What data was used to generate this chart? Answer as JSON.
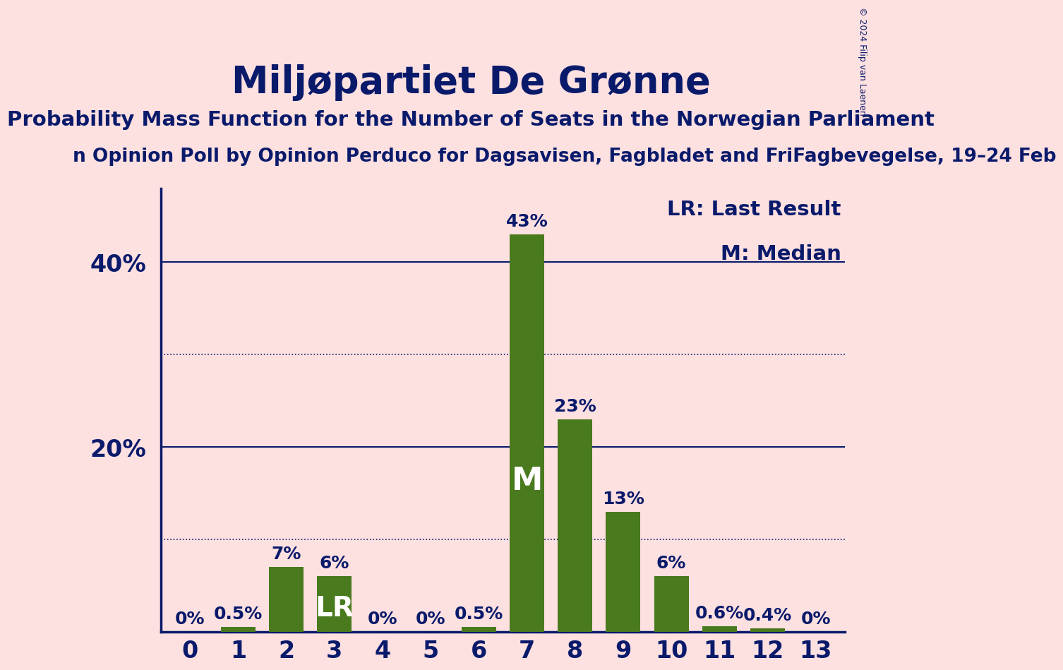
{
  "title": "Miljøpartiet De Grønne",
  "subtitle": "Probability Mass Function for the Number of Seats in the Norwegian Parliament",
  "source_line": "n Opinion Poll by Opinion Perduco for Dagsavisen, Fagbladet and FriFagbevegelse, 19–24 Feb",
  "copyright": "© 2024 Filip van Laenen",
  "categories": [
    0,
    1,
    2,
    3,
    4,
    5,
    6,
    7,
    8,
    9,
    10,
    11,
    12,
    13
  ],
  "values": [
    0.0,
    0.5,
    7.0,
    6.0,
    0.0,
    0.0,
    0.5,
    43.0,
    23.0,
    13.0,
    6.0,
    0.6,
    0.4,
    0.0
  ],
  "bar_color": "#4a7a1e",
  "background_color": "#fde0e0",
  "title_color": "#0a1a6b",
  "axis_color": "#0a1a6b",
  "text_color": "#0a1a6b",
  "lr_index": 3,
  "median_index": 7,
  "legend_lr": "LR: Last Result",
  "legend_m": "M: Median",
  "ylabel_ticks": [
    20,
    40
  ],
  "dotted_lines": [
    10,
    30
  ],
  "solid_lines": [
    20,
    40
  ],
  "ylim": [
    0,
    48
  ],
  "bar_labels": [
    "0%",
    "0.5%",
    "7%",
    "6%",
    "0%",
    "0%",
    "0.5%",
    "43%",
    "23%",
    "13%",
    "6%",
    "0.6%",
    "0.4%",
    "0%"
  ],
  "title_fontsize": 38,
  "subtitle_fontsize": 21,
  "source_fontsize": 19,
  "label_fontsize": 18,
  "tick_fontsize": 24,
  "legend_fontsize": 21,
  "bar_inner_label_fontsize": 28,
  "bar_width": 0.72
}
